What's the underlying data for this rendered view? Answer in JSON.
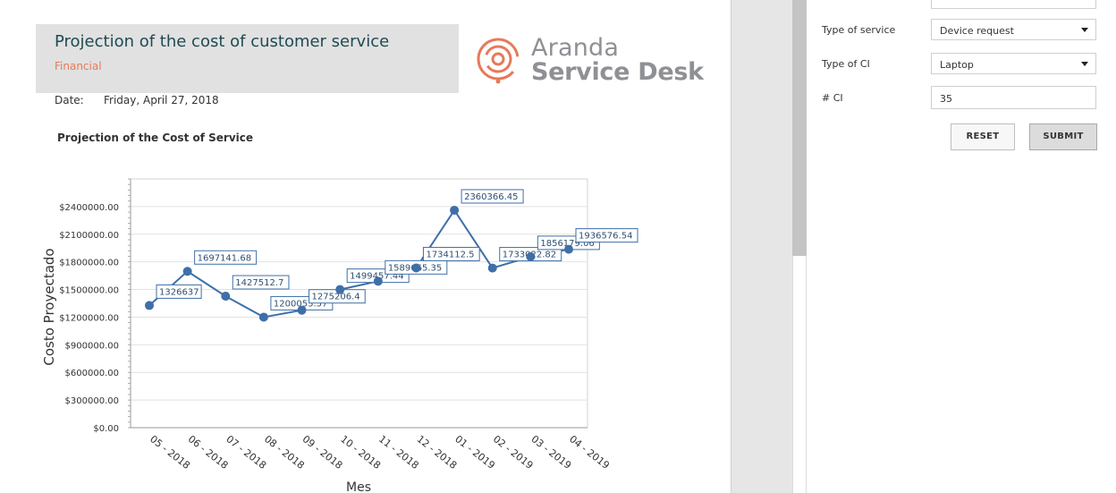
{
  "report": {
    "title": "Projection of the cost of customer service",
    "subtitle": "Financial",
    "date_label": "Date:",
    "date_value": "Friday, April 27, 2018",
    "chart_heading": "Projection of the Cost of Service"
  },
  "logo": {
    "line1": "Aranda",
    "line2": "Service Desk"
  },
  "form": {
    "service_type_label": "Type of service",
    "service_type_value": "Device request",
    "ci_type_label": "Type of CI",
    "ci_type_value": "Laptop",
    "ci_count_label": "# CI",
    "ci_count_value": "35",
    "reset_label": "RESET",
    "submit_label": "SUBMIT"
  },
  "colors": {
    "title": "#1f4a52",
    "subtitle": "#e8795a",
    "series": "#3e6fa8",
    "logo_accent": "#e8795a",
    "logo_text": "#8f9095"
  },
  "chart_data": {
    "type": "line",
    "xlabel": "Mes",
    "ylabel": "Costo Proyectado",
    "ylim": [
      0,
      2700000
    ],
    "yticks": [
      0,
      300000,
      600000,
      900000,
      1200000,
      1500000,
      1800000,
      2100000,
      2400000
    ],
    "ytick_labels": [
      "$0.00",
      "$300000.00",
      "$600000.00",
      "$900000.00",
      "$1200000.00",
      "$1500000.00",
      "$1800000.00",
      "$2100000.00",
      "$2400000.00"
    ],
    "categories": [
      "05 - 2018",
      "06 - 2018",
      "07 - 2018",
      "08 - 2018",
      "09 - 2018",
      "10 - 2018",
      "11 - 2018",
      "12 - 2018",
      "01 - 2019",
      "02 - 2019",
      "03 - 2019",
      "04 - 2019"
    ],
    "values": [
      1326637,
      1697141.68,
      1427512.7,
      1200053.57,
      1275206.4,
      1499457.44,
      1589665.35,
      1734112.5,
      2360366.45,
      1733022.82,
      1856179.06,
      1936576.54
    ],
    "data_labels": [
      "1326637",
      "1697141.68",
      "1427512.7",
      "1200053.57",
      "1275206.4",
      "1499457.44",
      "1589665.35",
      "1734112.5",
      "2360366.45",
      "1733022.82",
      "1856179.06",
      "1936576.54"
    ],
    "grid": true,
    "legend": "none"
  }
}
